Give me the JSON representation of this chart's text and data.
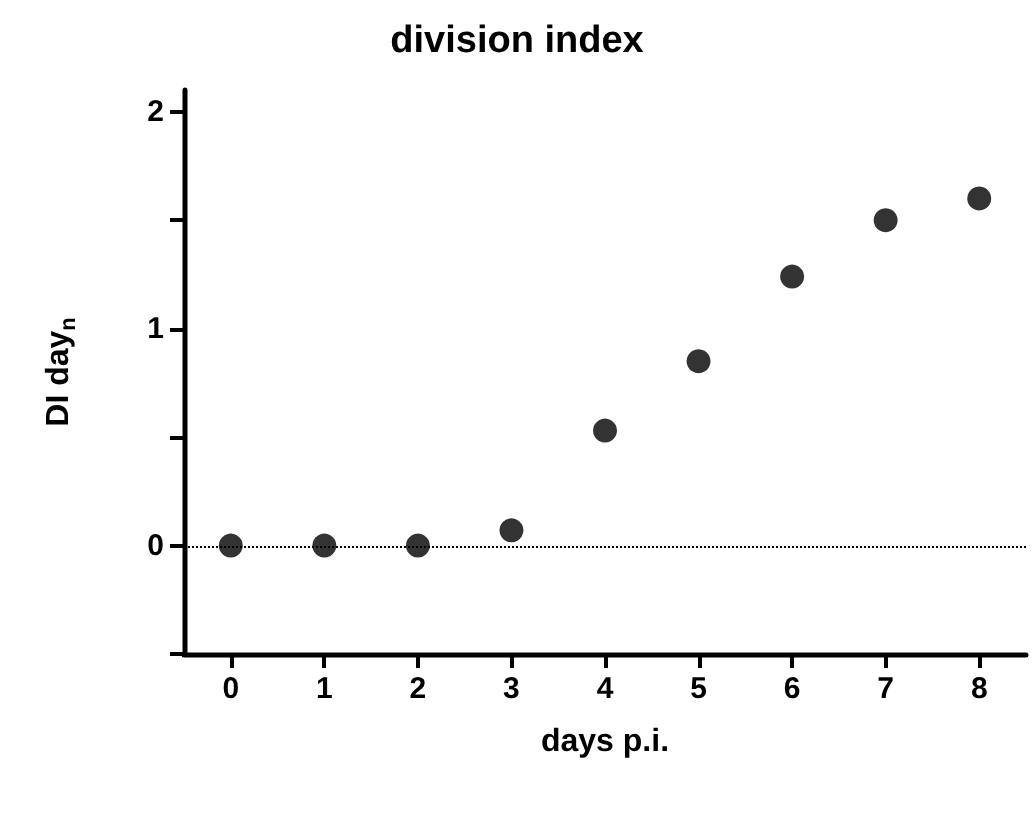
{
  "chart_data": {
    "type": "scatter",
    "title": "division index",
    "xlabel": "days p.i.",
    "ylabel": "DI day$_{n}$",
    "x": [
      0,
      1,
      2,
      3,
      4,
      5,
      6,
      7,
      8
    ],
    "series": [
      {
        "color": "#000000",
        "values": [
          0,
          0,
          0,
          0.07,
          0.53,
          0.85,
          1.24,
          1.5,
          1.6
        ]
      }
    ],
    "xlim": [
      -0.5,
      8.5
    ],
    "xticks": [
      0,
      1,
      2,
      3,
      4,
      5,
      6,
      7,
      8
    ],
    "ylim": [
      -0.5,
      2.1
    ],
    "yticks": [
      {
        "value": -0.5,
        "label": null
      },
      0,
      {
        "value": 0.5,
        "label": null
      },
      1,
      {
        "value": 1.5,
        "label": null
      },
      2
    ],
    "ref_lines": [
      {
        "axis": "y",
        "value": 0,
        "color": "#000000",
        "line_style": "dotted"
      }
    ],
    "marker": "circle",
    "grid": false
  }
}
